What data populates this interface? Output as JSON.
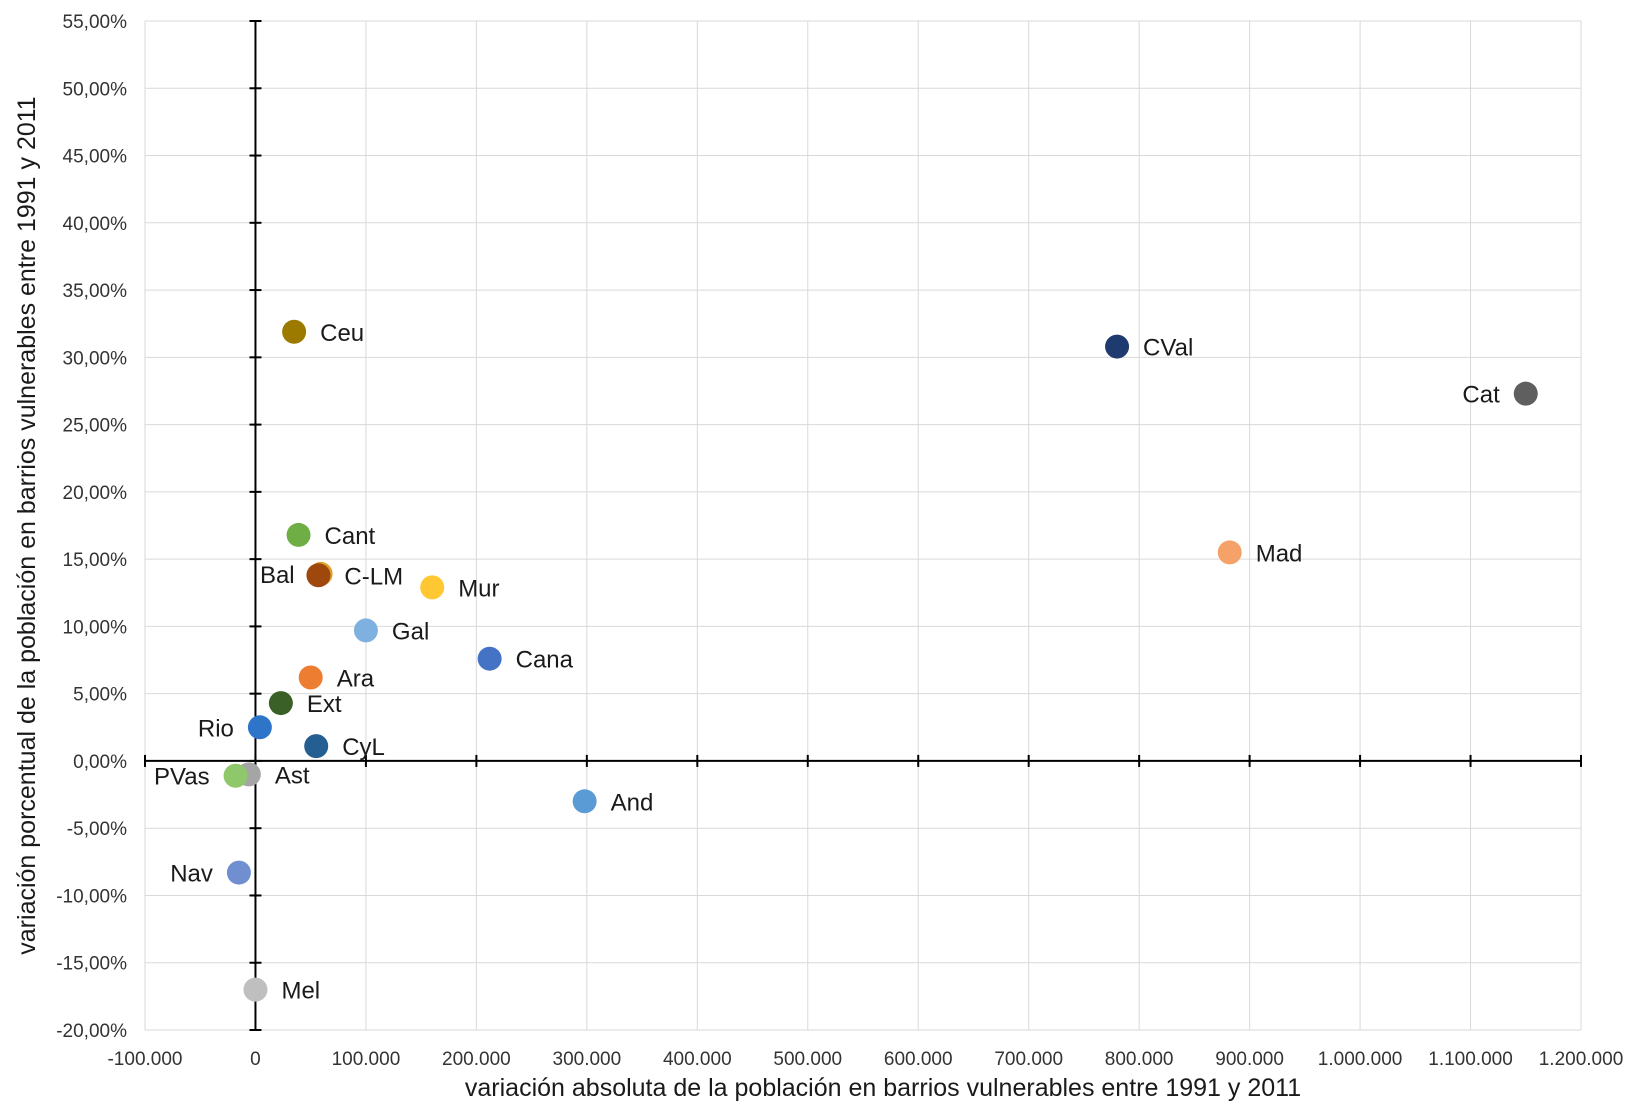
{
  "chart_data": {
    "type": "scatter",
    "xlabel": "variación absoluta de la población en barrios vulnerables entre 1991 y 2011",
    "ylabel": "variación porcentual de la población en barrios vulnerables entre 1991 y 2011",
    "xlim": [
      -100000,
      1200000
    ],
    "ylim": [
      -20,
      55
    ],
    "x_step": 100000,
    "y_step": 5,
    "grid": true,
    "legend": "none",
    "x_tick_labels": [
      "-100.000",
      "0",
      "100.000",
      "200.000",
      "300.000",
      "400.000",
      "500.000",
      "600.000",
      "700.000",
      "800.000",
      "900.000",
      "1.000.000",
      "1.100.000",
      "1.200.000"
    ],
    "y_tick_labels": [
      "-20,00%",
      "-15,00%",
      "-10,00%",
      "-5,00%",
      "0,00%",
      "5,00%",
      "10,00%",
      "15,00%",
      "20,00%",
      "25,00%",
      "30,00%",
      "35,00%",
      "40,00%",
      "45,00%",
      "50,00%",
      "55,00%"
    ],
    "points": [
      {
        "label": "Ceu",
        "x": 35000,
        "y": 31.9,
        "color": "#9c7a00",
        "label_side": "right"
      },
      {
        "label": "CVal",
        "x": 780000,
        "y": 30.8,
        "color": "#1f3a6e",
        "label_side": "right"
      },
      {
        "label": "Cat",
        "x": 1150000,
        "y": 27.3,
        "color": "#5f5f5f",
        "label_side": "left"
      },
      {
        "label": "Cant",
        "x": 39000,
        "y": 16.8,
        "color": "#6fae45",
        "label_side": "right"
      },
      {
        "label": "Mad",
        "x": 882000,
        "y": 15.5,
        "color": "#f4a267",
        "label_side": "right"
      },
      {
        "label": "Bal",
        "x": 59000,
        "y": 13.9,
        "color": "#e0a12a",
        "label_side": "left"
      },
      {
        "label": "C-LM",
        "x": 57000,
        "y": 13.8,
        "color": "#9e480e",
        "label_side": "right"
      },
      {
        "label": "Mur",
        "x": 160000,
        "y": 12.9,
        "color": "#ffc832",
        "label_side": "right"
      },
      {
        "label": "Gal",
        "x": 100000,
        "y": 9.7,
        "color": "#7fb1e0",
        "label_side": "right"
      },
      {
        "label": "Cana",
        "x": 212000,
        "y": 7.6,
        "color": "#4472c4",
        "label_side": "right"
      },
      {
        "label": "Ara",
        "x": 50000,
        "y": 6.2,
        "color": "#ed7d31",
        "label_side": "right"
      },
      {
        "label": "Ext",
        "x": 23000,
        "y": 4.3,
        "color": "#3a5f27",
        "label_side": "right"
      },
      {
        "label": "Rio",
        "x": 4000,
        "y": 2.5,
        "color": "#2e75c9",
        "label_side": "left"
      },
      {
        "label": "CyL",
        "x": 55000,
        "y": 1.1,
        "color": "#255e91",
        "label_side": "right"
      },
      {
        "label": "Ast",
        "x": -6000,
        "y": -1.0,
        "color": "#a5a5a5",
        "label_side": "right"
      },
      {
        "label": "PVas",
        "x": -18000,
        "y": -1.1,
        "color": "#8fc86b",
        "label_side": "left"
      },
      {
        "label": "And",
        "x": 298000,
        "y": -3.0,
        "color": "#5b9bd5",
        "label_side": "right"
      },
      {
        "label": "Nav",
        "x": -15000,
        "y": -8.3,
        "color": "#6f8fd1",
        "label_side": "left"
      },
      {
        "label": "Mel",
        "x": 0,
        "y": -17.0,
        "color": "#bfbfbf",
        "label_side": "right"
      }
    ]
  }
}
